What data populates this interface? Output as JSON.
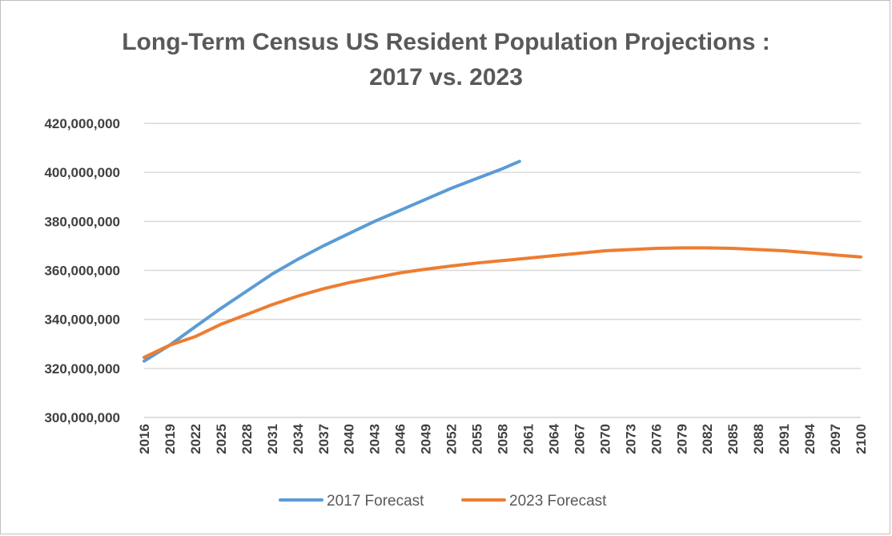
{
  "chart_data": {
    "type": "line",
    "title_line1": "Long-Term Census US Resident Population Projections :",
    "title_line2": "2017 vs. 2023",
    "xlabel": "",
    "ylabel": "",
    "ylim": [
      300000000,
      420000000
    ],
    "yticks": [
      300000000,
      320000000,
      340000000,
      360000000,
      380000000,
      400000000,
      420000000
    ],
    "ytick_labels": [
      "300,000,000",
      "320,000,000",
      "340,000,000",
      "360,000,000",
      "380,000,000",
      "400,000,000",
      "420,000,000"
    ],
    "xlim": [
      2016,
      2100
    ],
    "xtick_labels": [
      "2016",
      "2019",
      "2022",
      "2025",
      "2028",
      "2031",
      "2034",
      "2037",
      "2040",
      "2043",
      "2046",
      "2049",
      "2052",
      "2055",
      "2058",
      "2061",
      "2064",
      "2067",
      "2070",
      "2073",
      "2076",
      "2079",
      "2082",
      "2085",
      "2088",
      "2091",
      "2094",
      "2097",
      "2100"
    ],
    "grid": true,
    "legend_position": "bottom",
    "series": [
      {
        "name": "2017 Forecast",
        "color": "#5B9BD5",
        "x": [
          2016,
          2019,
          2022,
          2025,
          2028,
          2031,
          2034,
          2037,
          2040,
          2043,
          2046,
          2049,
          2052,
          2055,
          2058,
          2060
        ],
        "values": [
          323000000,
          329500000,
          337000000,
          344500000,
          351500000,
          358500000,
          364500000,
          370000000,
          375000000,
          380000000,
          384500000,
          389000000,
          393500000,
          397500000,
          401500000,
          404500000
        ]
      },
      {
        "name": "2023 Forecast",
        "color": "#ED7D31",
        "x": [
          2016,
          2019,
          2022,
          2025,
          2028,
          2031,
          2034,
          2037,
          2040,
          2043,
          2046,
          2049,
          2052,
          2055,
          2058,
          2061,
          2064,
          2067,
          2070,
          2073,
          2076,
          2079,
          2082,
          2085,
          2088,
          2091,
          2094,
          2097,
          2100
        ],
        "values": [
          324500000,
          329500000,
          333000000,
          338000000,
          342000000,
          346000000,
          349500000,
          352500000,
          355000000,
          357000000,
          359000000,
          360500000,
          361800000,
          363000000,
          364000000,
          365000000,
          366000000,
          367000000,
          368000000,
          368500000,
          369000000,
          369200000,
          369200000,
          369000000,
          368500000,
          368000000,
          367200000,
          366300000,
          365500000
        ]
      }
    ]
  }
}
